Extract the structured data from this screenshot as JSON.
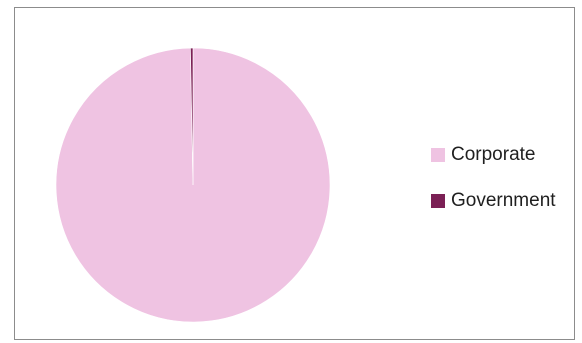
{
  "chart_data": {
    "type": "pie",
    "title": "",
    "categories": [
      "Corporate",
      "Government"
    ],
    "values": [
      99.7,
      0.3
    ],
    "colors": [
      "#efc3e2",
      "#7b2055"
    ],
    "start_angle_deg": 0,
    "direction": "clockwise",
    "legend_position": "right"
  },
  "legend": {
    "items": [
      {
        "label": "Corporate",
        "color": "#efc3e2"
      },
      {
        "label": "Government",
        "color": "#7b2055"
      }
    ]
  }
}
